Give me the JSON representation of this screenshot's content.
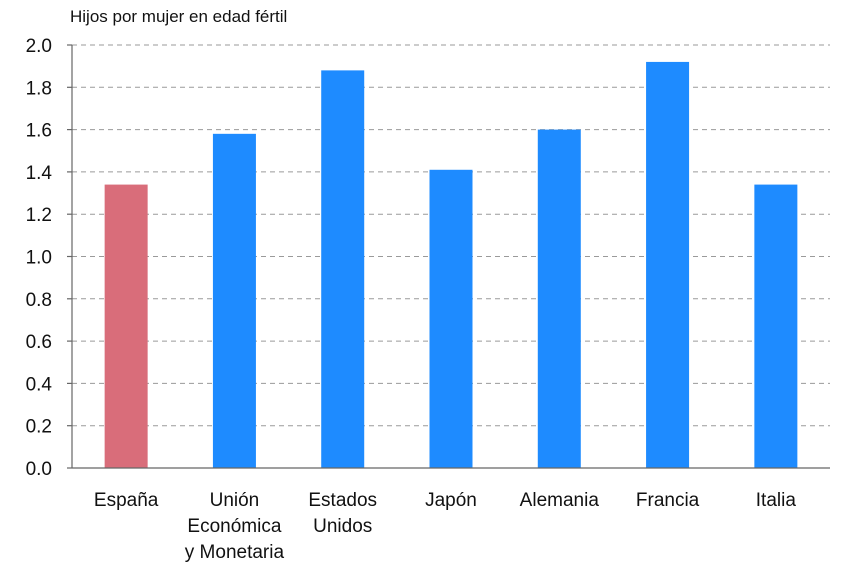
{
  "chart_data": {
    "type": "bar",
    "ylabel": "Hijos por mujer en edad fértil",
    "ylim": [
      0,
      2.0
    ],
    "yticks": [
      "0.0",
      "0.2",
      "0.4",
      "0.6",
      "0.8",
      "1.0",
      "1.2",
      "1.4",
      "1.6",
      "1.8",
      "2.0"
    ],
    "grid": true,
    "categories": [
      [
        "España"
      ],
      [
        "Unión",
        "Económica",
        "y Monetaria"
      ],
      [
        "Estados",
        "Unidos"
      ],
      [
        "Japón"
      ],
      [
        "Alemania"
      ],
      [
        "Francia"
      ],
      [
        "Italia"
      ]
    ],
    "values": [
      1.34,
      1.58,
      1.88,
      1.41,
      1.6,
      1.92,
      1.34
    ],
    "colors": [
      "#d96d7a",
      "#1e8bff",
      "#1e8bff",
      "#1e8bff",
      "#1e8bff",
      "#1e8bff",
      "#1e8bff"
    ]
  }
}
